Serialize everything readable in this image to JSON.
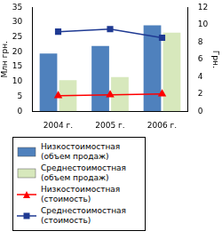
{
  "chart_data": {
    "type": "bar",
    "categories": [
      "2004 г.",
      "2005 г.",
      "2006 г."
    ],
    "y_label": "Млн грн.",
    "y2_label": "Грн.",
    "ylim": [
      0,
      35
    ],
    "yticks": [
      0,
      5,
      10,
      15,
      20,
      25,
      30,
      35
    ],
    "y2lim": [
      0,
      12
    ],
    "y2ticks": [
      0,
      2,
      4,
      6,
      8,
      10,
      12
    ],
    "grid": false,
    "legend": "bottom",
    "series": [
      {
        "name": "Низкостоимостная (объем продаж)",
        "type": "bar",
        "color": "#4f81bd",
        "values": [
          19.5,
          22,
          29
        ]
      },
      {
        "name": "Среднестоимостная (объем продаж)",
        "type": "bar",
        "color": "#d7e8bc",
        "values": [
          10.5,
          11.5,
          26.5
        ]
      },
      {
        "name": "Низкостоимостная (стоимость)",
        "type": "line",
        "axis": "y2",
        "color": "#ff0000",
        "marker": "triangle",
        "line_style": "solid",
        "values": [
          1.8,
          1.9,
          2.0
        ]
      },
      {
        "name": "Среднестоимостная (стоимость)",
        "type": "line",
        "axis": "y2",
        "color": "#1f3a93",
        "marker": "square",
        "line_style": "solid",
        "values": [
          9.2,
          9.5,
          8.5
        ]
      }
    ]
  }
}
